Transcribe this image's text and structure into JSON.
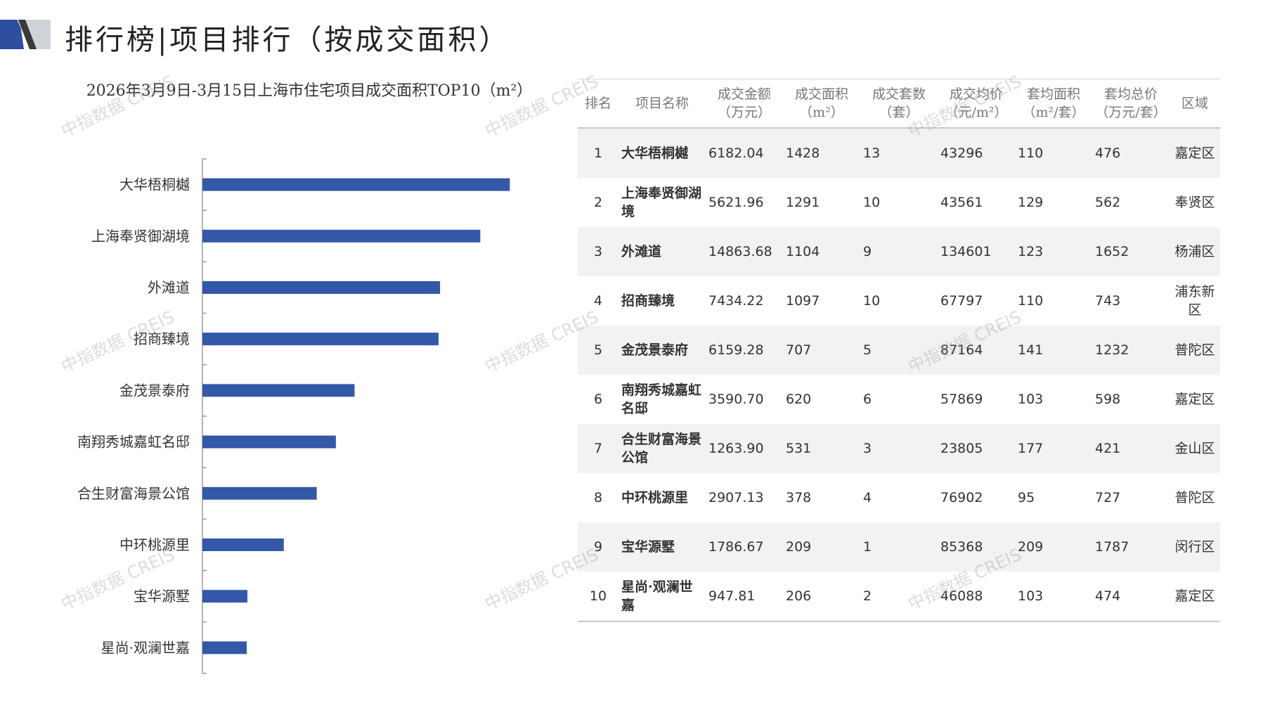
{
  "page": {
    "title": "排行榜|项目排行（按成交面积）",
    "watermark": "中指数据 CREIS",
    "colors": {
      "bar": "#3358a8",
      "accent_dark": "#2e4f9e",
      "accent_light": "#cfd3da"
    }
  },
  "chart_data": {
    "type": "bar",
    "orientation": "horizontal",
    "title": "2026年3月9日-3月15日上海市住宅项目成交面积TOP10（m²）",
    "categories": [
      "大华梧桐樾",
      "上海奉贤御湖境",
      "外滩道",
      "招商臻境",
      "金茂景泰府",
      "南翔秀城嘉虹名邸",
      "合生财富海景公馆",
      "中环桃源里",
      "宝华源墅",
      "星尚·观澜世嘉"
    ],
    "values": [
      1428,
      1291,
      1104,
      1097,
      707,
      620,
      531,
      378,
      209,
      206
    ],
    "xlim": [
      0,
      1600
    ],
    "grid": false,
    "legend": "none"
  },
  "table": {
    "headers": [
      {
        "line1": "排名",
        "line2": ""
      },
      {
        "line1": "项目名称",
        "line2": ""
      },
      {
        "line1": "成交金额",
        "line2": "（万元）"
      },
      {
        "line1": "成交面积",
        "line2": "（m²）"
      },
      {
        "line1": "成交套数",
        "line2": "（套）"
      },
      {
        "line1": "成交均价",
        "line2": "（元/m²）"
      },
      {
        "line1": "套均面积",
        "line2": "（m²/套）"
      },
      {
        "line1": "套均总价",
        "line2": "（万元/套）"
      },
      {
        "line1": "区域",
        "line2": ""
      }
    ],
    "rows": [
      {
        "rank": "1",
        "name": "大华梧桐樾",
        "amount": "6182.04",
        "area": "1428",
        "units": "13",
        "price": "43296",
        "avg_area": "110",
        "avg_total": "476",
        "district": "嘉定区"
      },
      {
        "rank": "2",
        "name": "上海奉贤御湖境",
        "amount": "5621.96",
        "area": "1291",
        "units": "10",
        "price": "43561",
        "avg_area": "129",
        "avg_total": "562",
        "district": "奉贤区"
      },
      {
        "rank": "3",
        "name": "外滩道",
        "amount": "14863.68",
        "area": "1104",
        "units": "9",
        "price": "134601",
        "avg_area": "123",
        "avg_total": "1652",
        "district": "杨浦区"
      },
      {
        "rank": "4",
        "name": "招商臻境",
        "amount": "7434.22",
        "area": "1097",
        "units": "10",
        "price": "67797",
        "avg_area": "110",
        "avg_total": "743",
        "district": "浦东新区"
      },
      {
        "rank": "5",
        "name": "金茂景泰府",
        "amount": "6159.28",
        "area": "707",
        "units": "5",
        "price": "87164",
        "avg_area": "141",
        "avg_total": "1232",
        "district": "普陀区"
      },
      {
        "rank": "6",
        "name": "南翔秀城嘉虹名邸",
        "amount": "3590.70",
        "area": "620",
        "units": "6",
        "price": "57869",
        "avg_area": "103",
        "avg_total": "598",
        "district": "嘉定区"
      },
      {
        "rank": "7",
        "name": "合生财富海景公馆",
        "amount": "1263.90",
        "area": "531",
        "units": "3",
        "price": "23805",
        "avg_area": "177",
        "avg_total": "421",
        "district": "金山区"
      },
      {
        "rank": "8",
        "name": "中环桃源里",
        "amount": "2907.13",
        "area": "378",
        "units": "4",
        "price": "76902",
        "avg_area": "95",
        "avg_total": "727",
        "district": "普陀区"
      },
      {
        "rank": "9",
        "name": "宝华源墅",
        "amount": "1786.67",
        "area": "209",
        "units": "1",
        "price": "85368",
        "avg_area": "209",
        "avg_total": "1787",
        "district": "闵行区"
      },
      {
        "rank": "10",
        "name": "星尚·观澜世嘉",
        "amount": "947.81",
        "area": "206",
        "units": "2",
        "price": "46088",
        "avg_area": "103",
        "avg_total": "474",
        "district": "嘉定区"
      }
    ]
  }
}
